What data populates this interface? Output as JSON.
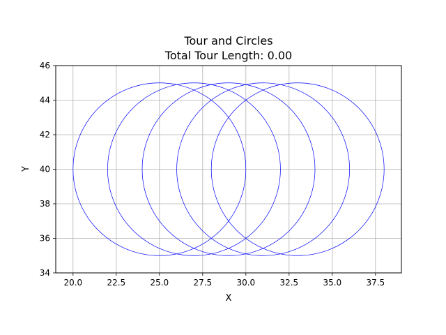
{
  "chart_data": {
    "type": "scatter",
    "title": "Tour and Circles",
    "subtitle": "Total Tour Length: 0.00",
    "xlabel": "X",
    "ylabel": "Y",
    "xlim": [
      19,
      39
    ],
    "ylim": [
      34,
      46
    ],
    "xticks": [
      "20.0",
      "22.5",
      "25.0",
      "27.5",
      "30.0",
      "32.5",
      "35.0",
      "37.5"
    ],
    "xtick_values": [
      20,
      22.5,
      25,
      27.5,
      30,
      32.5,
      35,
      37.5
    ],
    "yticks": [
      "34",
      "36",
      "38",
      "40",
      "42",
      "44",
      "46"
    ],
    "ytick_values": [
      34,
      36,
      38,
      40,
      42,
      44,
      46
    ],
    "grid": true,
    "circle_color": "#0000ff",
    "circles": [
      {
        "cx": 25,
        "cy": 40,
        "r": 5
      },
      {
        "cx": 27,
        "cy": 40,
        "r": 5
      },
      {
        "cx": 29,
        "cy": 40,
        "r": 5
      },
      {
        "cx": 31,
        "cy": 40,
        "r": 5
      },
      {
        "cx": 33,
        "cy": 40,
        "r": 5
      }
    ]
  }
}
